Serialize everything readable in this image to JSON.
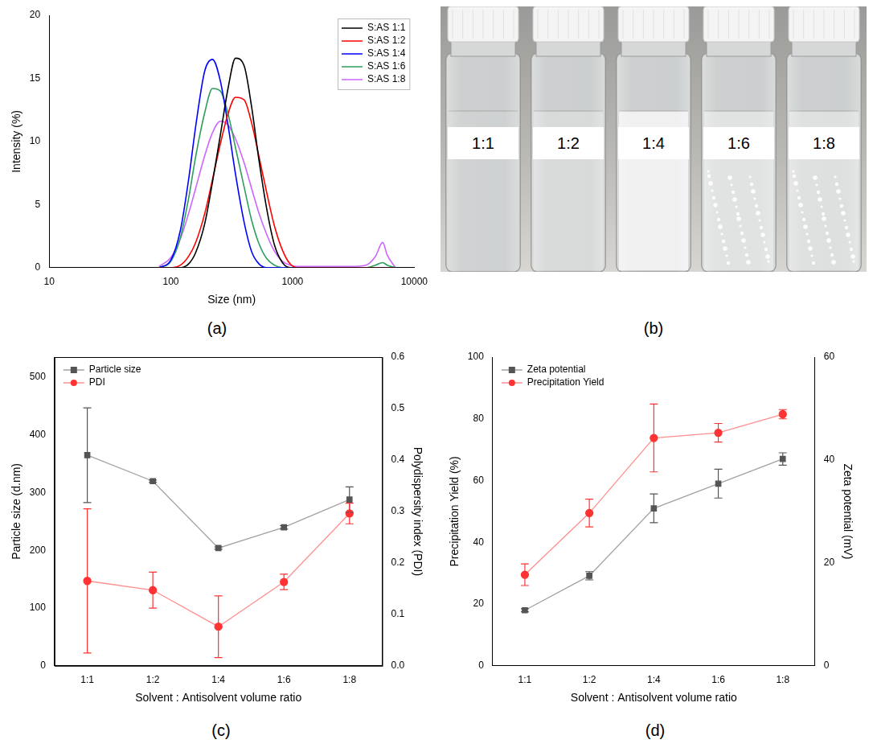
{
  "chart_data": [
    {
      "panel": "(a)",
      "type": "line",
      "log": "x",
      "x_label": "Size (nm)",
      "y_label": "Intensity (%)",
      "xlim": [
        10,
        10000
      ],
      "xticks": [
        10,
        100,
        1000,
        10000
      ],
      "ylim": [
        0,
        20
      ],
      "yticks": [
        0,
        5,
        10,
        15,
        20
      ],
      "grid": false,
      "legend": "upper right",
      "x": [
        80,
        100,
        120,
        140,
        160,
        190,
        220,
        255,
        295,
        340,
        400,
        460,
        530,
        615,
        710,
        825,
        955,
        1100,
        1500,
        2000,
        3000,
        4000,
        4800,
        5500,
        6000,
        7000
      ],
      "series": [
        {
          "name": "S:AS 1:1",
          "color": "#000000",
          "line_style": "solid",
          "marker": "none",
          "values": [
            0,
            0,
            0,
            0.3,
            1.2,
            3.5,
            6.8,
            10.5,
            14.2,
            16.6,
            16.0,
            12.8,
            8.5,
            4.6,
            1.8,
            0.4,
            0,
            0,
            0,
            0,
            0,
            0,
            0,
            0,
            0,
            0
          ]
        },
        {
          "name": "S:AS 1:2",
          "color": "#ff0000",
          "line_style": "solid",
          "marker": "none",
          "values": [
            0,
            0,
            0.2,
            0.9,
            2.0,
            4.3,
            7.0,
            9.8,
            12.2,
            13.5,
            13.3,
            11.5,
            8.8,
            5.9,
            3.3,
            1.4,
            0.3,
            0,
            0,
            0,
            0,
            0,
            0,
            0,
            0,
            0
          ]
        },
        {
          "name": "S:AS 1:4",
          "color": "#0000ff",
          "line_style": "solid",
          "marker": "none",
          "values": [
            0,
            0.6,
            3.0,
            7.0,
            11.2,
            15.6,
            16.5,
            14.8,
            11.3,
            7.4,
            3.6,
            1.3,
            0.3,
            0,
            0,
            0,
            0,
            0,
            0,
            0,
            0,
            0,
            0,
            0,
            0,
            0
          ]
        },
        {
          "name": "S:AS 1:6",
          "color": "#2e9e5b",
          "line_style": "solid",
          "marker": "none",
          "values": [
            0,
            0.5,
            2.4,
            5.5,
            8.8,
            12.3,
            14.2,
            14.0,
            12.2,
            9.5,
            6.4,
            3.8,
            1.9,
            0.7,
            0.2,
            0,
            0,
            0,
            0,
            0,
            0,
            0,
            0.2,
            0.4,
            0.2,
            0
          ]
        },
        {
          "name": "S:AS 1:8",
          "color": "#cc66ff",
          "line_style": "solid",
          "marker": "none",
          "values": [
            0.1,
            0.8,
            2.3,
            4.3,
            6.3,
            8.9,
            10.7,
            11.6,
            11.3,
            10.2,
            8.3,
            6.3,
            4.3,
            2.6,
            1.3,
            0.5,
            0.2,
            0.1,
            0.1,
            0.1,
            0.1,
            0.2,
            0.9,
            2.0,
            1.0,
            0
          ]
        }
      ]
    },
    {
      "panel": "(c)",
      "type": "line",
      "x_label": "Solvent : Antisolvent volume ratio",
      "y_label": "Particle size (d.nm)",
      "y2_label": "Polydispersity index (PDI)",
      "categories": [
        "1:1",
        "1:2",
        "1:4",
        "1:6",
        "1:8"
      ],
      "ylim": [
        0,
        535
      ],
      "yticks": [
        0,
        100,
        200,
        300,
        400,
        500
      ],
      "y2lim": [
        0,
        0.6
      ],
      "y2ticks": [
        {
          "value": 0,
          "label": "0.0"
        },
        {
          "value": 0.1,
          "label": "0.1"
        },
        {
          "value": 0.2,
          "label": "0.2"
        },
        {
          "value": 0.3,
          "label": "0.3"
        },
        {
          "value": 0.4,
          "label": "0.4"
        },
        {
          "value": 0.5,
          "label": "0.5"
        },
        {
          "value": 0.6,
          "label": "0.6"
        }
      ],
      "grid": false,
      "legend": "upper left",
      "series": [
        {
          "name": "Particle size",
          "color": "#555555",
          "marker": "square",
          "line_style": "solid",
          "values": [
            365,
            320,
            204,
            240,
            288
          ],
          "errors": [
            82,
            2,
            2,
            3,
            22
          ]
        },
        {
          "name": "PDI",
          "color": "#ff3333",
          "marker": "circle",
          "line_style": "solid",
          "axis": "y2",
          "values": [
            0.165,
            0.147,
            0.076,
            0.163,
            0.296
          ],
          "errors": [
            0.14,
            0.035,
            0.06,
            0.015,
            0.02
          ]
        }
      ]
    },
    {
      "panel": "(d)",
      "type": "line",
      "x_label": "Solvent : Antisolvent volume ratio",
      "y_label": "Precipitation Yield (%)",
      "y2_label": "Zeta potential (mV)",
      "categories": [
        "1:1",
        "1:2",
        "1:4",
        "1:6",
        "1:8"
      ],
      "ylim": [
        0,
        100
      ],
      "yticks": [
        0,
        20,
        40,
        60,
        80,
        100
      ],
      "y2lim": [
        0,
        60
      ],
      "y2ticks": [
        0,
        20,
        40,
        60
      ],
      "grid": false,
      "legend": "upper left",
      "series": [
        {
          "name": "Zeta potential",
          "color": "#555555",
          "marker": "square",
          "line_style": "solid",
          "axis": "y2",
          "values": [
            10.8,
            17.5,
            30.6,
            35.4,
            40.2
          ],
          "errors": [
            0.3,
            0.8,
            2.8,
            2.8,
            1.2
          ]
        },
        {
          "name": "Precipitation Yield",
          "color": "#ff3333",
          "marker": "circle",
          "line_style": "solid",
          "values": [
            29.5,
            49.5,
            73.8,
            75.5,
            81.5
          ],
          "errors": [
            3.5,
            4.5,
            11,
            3,
            1.5
          ]
        }
      ]
    }
  ],
  "photo": {
    "panel": "(b)",
    "vial_labels": [
      "1:1",
      "1:2",
      "1:4",
      "1:6",
      "1:8"
    ]
  }
}
